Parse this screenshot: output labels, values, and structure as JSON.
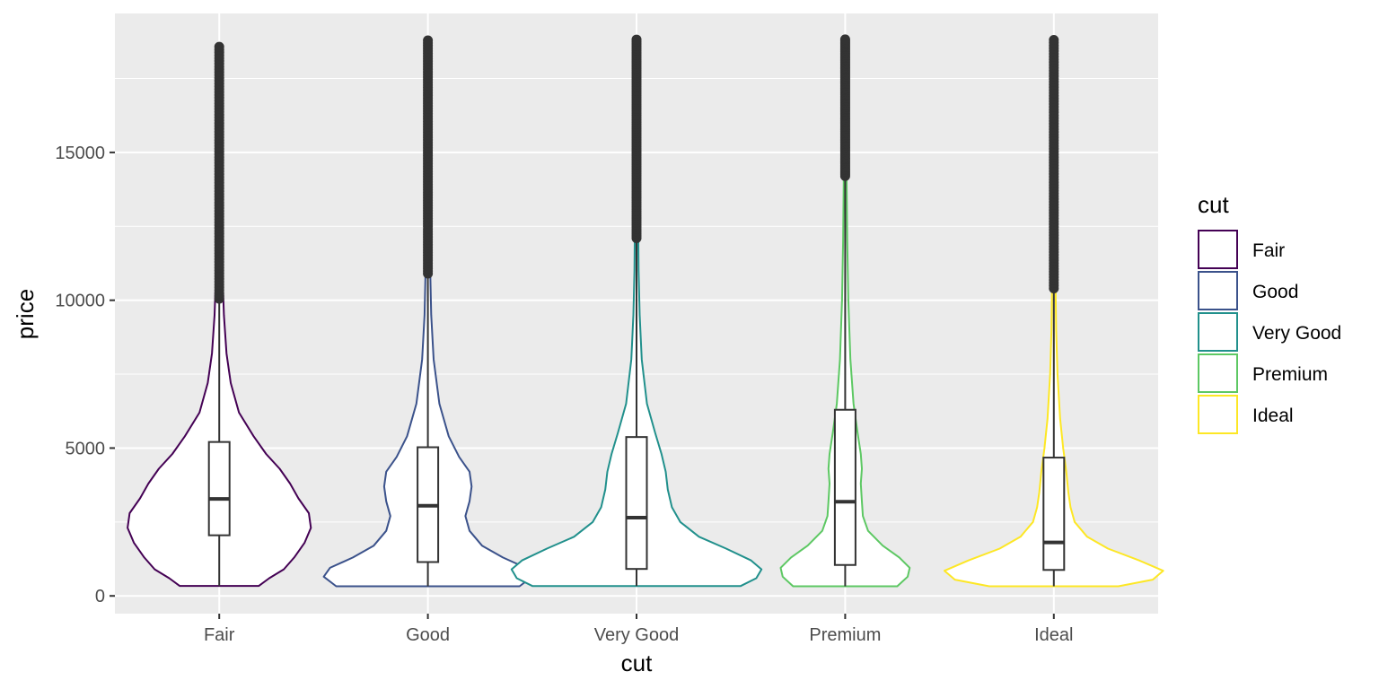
{
  "chart_data": {
    "type": "violin",
    "title": "",
    "xlabel": "cut",
    "ylabel": "price",
    "categories": [
      "Fair",
      "Good",
      "Very Good",
      "Premium",
      "Ideal"
    ],
    "ylim": [
      -600,
      19700
    ],
    "yticks": [
      0,
      5000,
      10000,
      15000
    ],
    "grid": true,
    "legend": {
      "title": "cut",
      "position": "right",
      "entries": [
        "Fair",
        "Good",
        "Very Good",
        "Premium",
        "Ideal"
      ]
    },
    "colors": {
      "Fair": "#440154",
      "Good": "#3b528b",
      "Very Good": "#21908c",
      "Premium": "#5dc863",
      "Ideal": "#fde725"
    },
    "colors_panel": {
      "background": "#ebebeb",
      "grid": "#ffffff",
      "box": "#333333",
      "outlier": "#333333"
    },
    "series": [
      {
        "name": "Fair",
        "min": 337,
        "max": 18574,
        "box": {
          "whisker_low": 337,
          "q1": 2050,
          "median": 3282,
          "q3": 5206,
          "whisker_high": 9900
        },
        "outlier_range": [
          10050,
          18574
        ],
        "density": [
          [
            337,
            0.38
          ],
          [
            600,
            0.48
          ],
          [
            900,
            0.62
          ],
          [
            1300,
            0.72
          ],
          [
            1800,
            0.82
          ],
          [
            2300,
            0.88
          ],
          [
            2800,
            0.86
          ],
          [
            3300,
            0.76
          ],
          [
            3800,
            0.68
          ],
          [
            4300,
            0.58
          ],
          [
            4800,
            0.45
          ],
          [
            5400,
            0.33
          ],
          [
            6200,
            0.19
          ],
          [
            7200,
            0.11
          ],
          [
            8200,
            0.07
          ],
          [
            9500,
            0.045
          ],
          [
            11000,
            0.03
          ],
          [
            13000,
            0.022
          ],
          [
            15000,
            0.016
          ],
          [
            16500,
            0.008
          ],
          [
            18574,
            0
          ]
        ]
      },
      {
        "name": "Good",
        "min": 327,
        "max": 18788,
        "box": {
          "whisker_low": 327,
          "q1": 1145,
          "median": 3050,
          "q3": 5028,
          "whisker_high": 10850
        },
        "outlier_range": [
          10900,
          18788
        ],
        "density": [
          [
            327,
            0.88
          ],
          [
            650,
            1.0
          ],
          [
            950,
            0.94
          ],
          [
            1300,
            0.72
          ],
          [
            1700,
            0.52
          ],
          [
            2200,
            0.4
          ],
          [
            2700,
            0.36
          ],
          [
            3200,
            0.4
          ],
          [
            3700,
            0.42
          ],
          [
            4200,
            0.4
          ],
          [
            4700,
            0.3
          ],
          [
            5400,
            0.2
          ],
          [
            6500,
            0.11
          ],
          [
            8000,
            0.055
          ],
          [
            9500,
            0.032
          ],
          [
            11000,
            0.022
          ],
          [
            13000,
            0.016
          ],
          [
            15000,
            0.012
          ],
          [
            17000,
            0.008
          ],
          [
            18788,
            0
          ]
        ]
      },
      {
        "name": "Very Good",
        "min": 336,
        "max": 18818,
        "box": {
          "whisker_low": 336,
          "q1": 912,
          "median": 2648,
          "q3": 5373,
          "whisker_high": 12100
        },
        "outlier_range": [
          12100,
          18818
        ],
        "density": [
          [
            336,
            1.0
          ],
          [
            600,
            1.15
          ],
          [
            900,
            1.2
          ],
          [
            1200,
            1.1
          ],
          [
            1600,
            0.86
          ],
          [
            2000,
            0.6
          ],
          [
            2500,
            0.42
          ],
          [
            3000,
            0.34
          ],
          [
            3600,
            0.3
          ],
          [
            4200,
            0.28
          ],
          [
            4800,
            0.24
          ],
          [
            5500,
            0.18
          ],
          [
            6500,
            0.1
          ],
          [
            8000,
            0.05
          ],
          [
            9500,
            0.03
          ],
          [
            11000,
            0.02
          ],
          [
            13000,
            0.015
          ],
          [
            15000,
            0.01
          ],
          [
            17000,
            0.007
          ],
          [
            18818,
            0
          ]
        ]
      },
      {
        "name": "Premium",
        "min": 326,
        "max": 18823,
        "box": {
          "whisker_low": 326,
          "q1": 1046,
          "median": 3185,
          "q3": 6296,
          "whisker_high": 14200
        },
        "outlier_range": [
          14200,
          18823
        ],
        "density": [
          [
            326,
            0.5
          ],
          [
            650,
            0.6
          ],
          [
            950,
            0.62
          ],
          [
            1300,
            0.52
          ],
          [
            1700,
            0.36
          ],
          [
            2200,
            0.22
          ],
          [
            2700,
            0.17
          ],
          [
            3200,
            0.16
          ],
          [
            3800,
            0.15
          ],
          [
            4300,
            0.16
          ],
          [
            4800,
            0.15
          ],
          [
            5500,
            0.12
          ],
          [
            6500,
            0.08
          ],
          [
            8000,
            0.05
          ],
          [
            10000,
            0.03
          ],
          [
            12000,
            0.02
          ],
          [
            14000,
            0.014
          ],
          [
            16000,
            0.01
          ],
          [
            18823,
            0
          ]
        ]
      },
      {
        "name": "Ideal",
        "min": 326,
        "max": 18806,
        "box": {
          "whisker_low": 326,
          "q1": 878,
          "median": 1810,
          "q3": 4678,
          "whisker_high": 10350
        },
        "outlier_range": [
          10400,
          18806
        ],
        "density": [
          [
            326,
            0.62
          ],
          [
            550,
            0.95
          ],
          [
            850,
            1.05
          ],
          [
            1200,
            0.82
          ],
          [
            1600,
            0.52
          ],
          [
            2000,
            0.32
          ],
          [
            2500,
            0.2
          ],
          [
            3000,
            0.16
          ],
          [
            3500,
            0.14
          ],
          [
            4200,
            0.12
          ],
          [
            5000,
            0.09
          ],
          [
            6000,
            0.06
          ],
          [
            7500,
            0.035
          ],
          [
            9000,
            0.022
          ],
          [
            11000,
            0.015
          ],
          [
            13000,
            0.011
          ],
          [
            15000,
            0.008
          ],
          [
            17000,
            0.005
          ],
          [
            18806,
            0
          ]
        ]
      }
    ]
  }
}
